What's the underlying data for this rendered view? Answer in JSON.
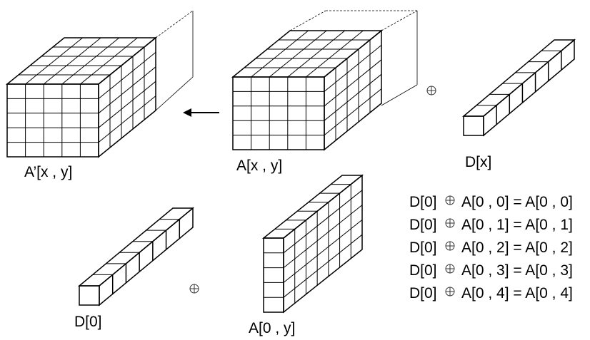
{
  "labels": {
    "a_prime": "A’[x , y]",
    "a": "A[x , y]",
    "d": "D[x]",
    "d0": "D[0]",
    "a0": "A[0 , y]"
  },
  "operator_symbol": "⊕",
  "equations": [
    {
      "left": "D[0]",
      "right": "A[0 , 0] = A[0 , 0]"
    },
    {
      "left": "D[0]",
      "right": "A[0 , 1] = A[0 , 1]"
    },
    {
      "left": "D[0]",
      "right": "A[0 , 2] = A[0 , 2]"
    },
    {
      "left": "D[0]",
      "right": "A[0 , 3] = A[0 , 3]"
    },
    {
      "left": "D[0]",
      "right": "A[0 , 4] = A[0 , 4]"
    }
  ]
}
